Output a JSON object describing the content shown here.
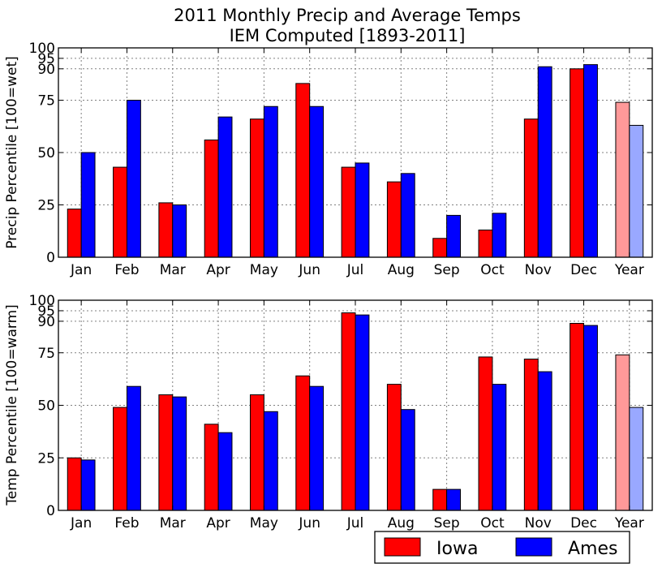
{
  "chart_data": {
    "type": "bar",
    "title_lines": [
      "2011 Monthly Precip and Average Temps",
      "IEM Computed [1893-2011]"
    ],
    "categories": [
      "Jan",
      "Feb",
      "Mar",
      "Apr",
      "May",
      "Jun",
      "Jul",
      "Aug",
      "Sep",
      "Oct",
      "Nov",
      "Dec",
      "Year"
    ],
    "legend": {
      "placement": "bottom-right",
      "entries": [
        {
          "name": "Iowa",
          "color": "#ff0000"
        },
        {
          "name": "Ames",
          "color": "#0000ff"
        }
      ]
    },
    "year_colors": {
      "Iowa": "#ff9999",
      "Ames": "#99a8ff"
    },
    "panels": [
      {
        "ylabel": "Precip Percentile [100=wet]",
        "ylim": [
          0,
          100
        ],
        "yticks": [
          0,
          25,
          50,
          75,
          90,
          95,
          100
        ],
        "grid": true,
        "series": [
          {
            "name": "Iowa",
            "values": [
              23,
              43,
              26,
              56,
              66,
              83,
              43,
              36,
              9,
              13,
              66,
              90,
              74
            ]
          },
          {
            "name": "Ames",
            "values": [
              50,
              75,
              25,
              67,
              72,
              72,
              45,
              40,
              20,
              21,
              91,
              92,
              63
            ]
          }
        ]
      },
      {
        "ylabel": "Temp Percentile [100=warm]",
        "ylim": [
          0,
          100
        ],
        "yticks": [
          0,
          25,
          50,
          75,
          90,
          95,
          100
        ],
        "grid": true,
        "series": [
          {
            "name": "Iowa",
            "values": [
              25,
              49,
              55,
              41,
              55,
              64,
              94,
              60,
              10,
              73,
              72,
              89,
              74
            ]
          },
          {
            "name": "Ames",
            "values": [
              24,
              59,
              54,
              37,
              47,
              59,
              93,
              48,
              10,
              60,
              66,
              88,
              49
            ]
          }
        ]
      }
    ]
  }
}
